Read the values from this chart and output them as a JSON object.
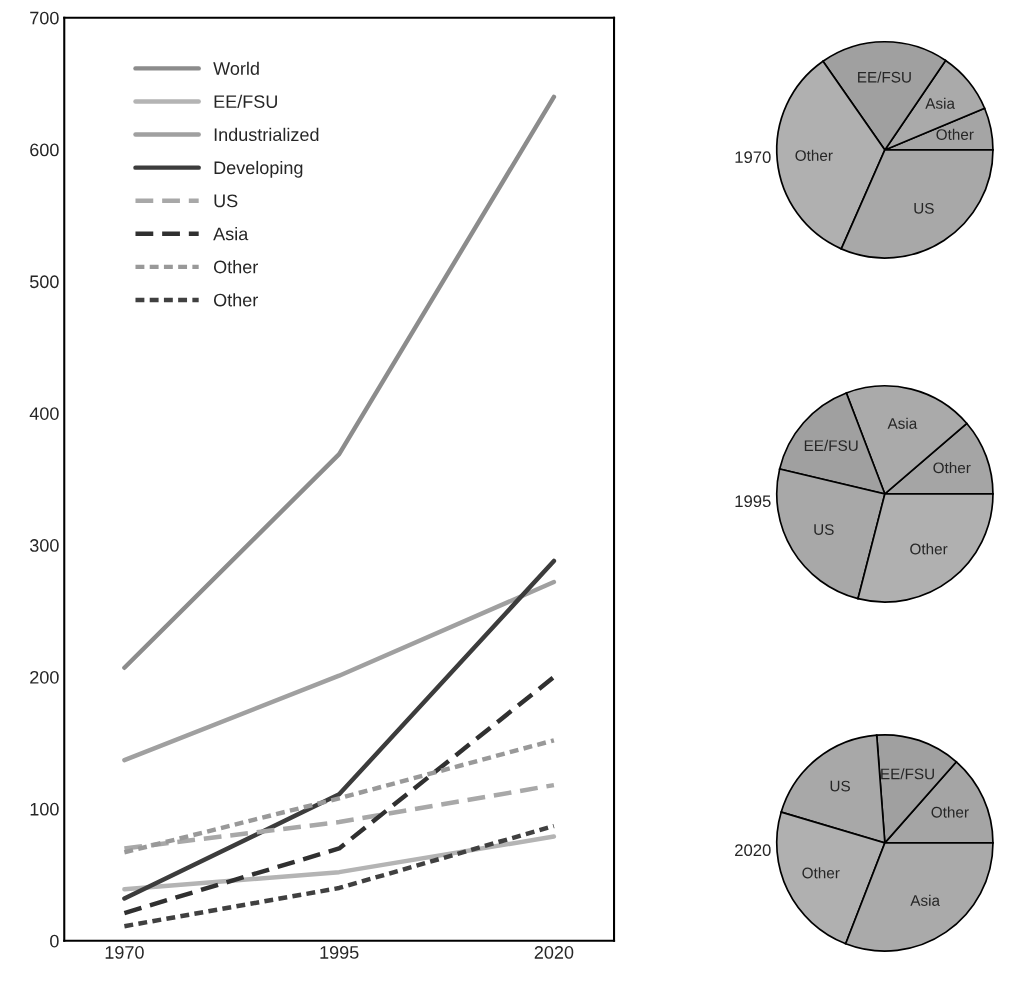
{
  "chart_data": [
    {
      "type": "line",
      "x": [
        1970,
        1995,
        2020
      ],
      "xlim": [
        1963,
        2027
      ],
      "xticks": [
        1970,
        1995,
        2020
      ],
      "ylim": [
        0,
        700
      ],
      "yticks": [
        0,
        100,
        200,
        300,
        400,
        500,
        600,
        700
      ],
      "grid": false,
      "legend": "top left",
      "series": [
        {
          "name": "World",
          "color": "#8c8c8c",
          "line_style": "solid",
          "values": [
            207,
            369,
            640
          ]
        },
        {
          "name": "EE/FSU",
          "color": "#b4b4b4",
          "line_style": "solid",
          "values": [
            39,
            52,
            79
          ]
        },
        {
          "name": "Industrialized",
          "color": "#a0a0a0",
          "line_style": "solid",
          "values": [
            137,
            201,
            272
          ]
        },
        {
          "name": "Developing",
          "color": "#3c3c3c",
          "line_style": "solid",
          "values": [
            32,
            111,
            288
          ]
        },
        {
          "name": "US",
          "color": "#a8a8a8",
          "line_style": "dashed",
          "values": [
            70,
            90,
            118
          ]
        },
        {
          "name": "Asia",
          "color": "#303030",
          "line_style": "dashed",
          "values": [
            21,
            70,
            200
          ]
        },
        {
          "name": "Other",
          "color": "#999999",
          "line_style": "dotted",
          "values": [
            67,
            108,
            152
          ]
        },
        {
          "name": "Other",
          "color": "#404040",
          "line_style": "dotted",
          "values": [
            11,
            40,
            87
          ]
        }
      ]
    },
    {
      "type": "pie",
      "title": "1970",
      "categories": [
        "Other",
        "Asia",
        "EE/FSU",
        "Other",
        "US"
      ],
      "values": [
        6.3,
        9.2,
        19.2,
        33.7,
        31.6
      ],
      "colors": [
        "#a5a5a5",
        "#aaaaaa",
        "#a0a0a0",
        "#b0b0b0",
        "#a8a8a8"
      ]
    },
    {
      "type": "pie",
      "title": "1995",
      "categories": [
        "Other",
        "Asia",
        "EE/FSU",
        "US",
        "Other"
      ],
      "values": [
        11.3,
        19.5,
        15.5,
        24.7,
        29.0
      ],
      "colors": [
        "#a5a5a5",
        "#aaaaaa",
        "#a0a0a0",
        "#a8a8a8",
        "#b0b0b0"
      ]
    },
    {
      "type": "pie",
      "title": "2020",
      "categories": [
        "Other",
        "EE/FSU",
        "US",
        "Other",
        "Asia"
      ],
      "values": [
        13.5,
        12.7,
        19.2,
        23.7,
        30.9
      ],
      "colors": [
        "#a5a5a5",
        "#a0a0a0",
        "#a8a8a8",
        "#b0b0b0",
        "#aaaaaa"
      ]
    }
  ]
}
